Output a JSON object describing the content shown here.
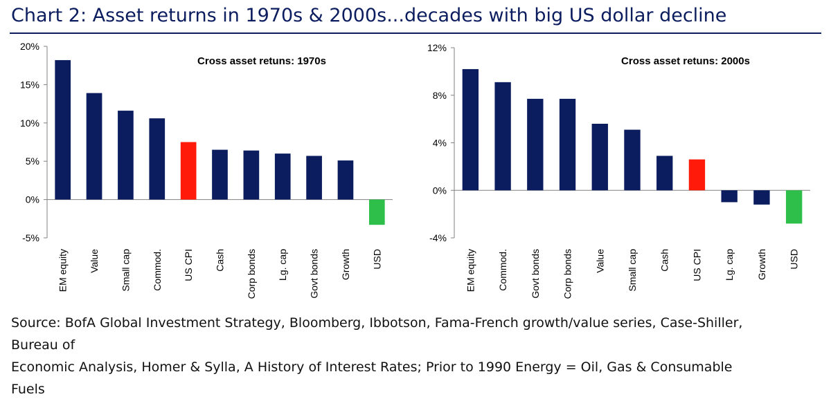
{
  "title": "Chart 2: Asset returns in 1970s & 2000s...decades with big US dollar decline",
  "source_lines": [
    "Source: BofA Global Investment Strategy, Bloomberg, Ibbotson, Fama-French growth/value series, Case-Shiller,",
    "Bureau of",
    "Economic Analysis, Homer & Sylla, A History of Interest Rates; Prior to 1990 Energy = Oil, Gas & Consumable",
    "Fuels"
  ],
  "colors": {
    "bar": "#0b1d5e",
    "us_cpi": "#ff1a0a",
    "usd": "#2ebf4a",
    "title": "#0b1d5e"
  },
  "chart_data": [
    {
      "type": "bar",
      "title": "Cross asset retuns: 1970s",
      "categories": [
        "EM equity",
        "Value",
        "Small cap",
        "Commod.",
        "US CPI",
        "Cash",
        "Corp bonds",
        "Lg. cap",
        "Govt bonds",
        "Growth",
        "USD"
      ],
      "values": [
        18.2,
        13.9,
        11.6,
        10.6,
        7.5,
        6.5,
        6.4,
        6.0,
        5.7,
        5.1,
        -3.3
      ],
      "bar_colors": [
        "#0b1d5e",
        "#0b1d5e",
        "#0b1d5e",
        "#0b1d5e",
        "#ff1a0a",
        "#0b1d5e",
        "#0b1d5e",
        "#0b1d5e",
        "#0b1d5e",
        "#0b1d5e",
        "#2ebf4a"
      ],
      "yticks": [
        20,
        15,
        10,
        5,
        0,
        -5
      ],
      "ytick_labels": [
        "20%",
        "15%",
        "10%",
        "5%",
        "0%",
        "-5%"
      ],
      "ylim": [
        -5,
        20
      ],
      "xlabel": "",
      "ylabel": "",
      "grid": false,
      "legend": "none"
    },
    {
      "type": "bar",
      "title": "Cross asset retuns: 2000s",
      "categories": [
        "EM equity",
        "Commod.",
        "Govt bonds",
        "Corp bonds",
        "Value",
        "Small cap",
        "Cash",
        "US CPI",
        "Lg. cap",
        "Growth",
        "USD"
      ],
      "values": [
        10.2,
        9.1,
        7.7,
        7.7,
        5.6,
        5.1,
        2.9,
        2.6,
        -1.0,
        -1.2,
        -2.8
      ],
      "bar_colors": [
        "#0b1d5e",
        "#0b1d5e",
        "#0b1d5e",
        "#0b1d5e",
        "#0b1d5e",
        "#0b1d5e",
        "#0b1d5e",
        "#ff1a0a",
        "#0b1d5e",
        "#0b1d5e",
        "#2ebf4a"
      ],
      "yticks": [
        12,
        8,
        4,
        0,
        -4
      ],
      "ytick_labels": [
        "12%",
        "8%",
        "4%",
        "0%",
        "-4%"
      ],
      "ylim": [
        -4,
        12
      ],
      "xlabel": "",
      "ylabel": "",
      "grid": false,
      "legend": "none"
    }
  ]
}
